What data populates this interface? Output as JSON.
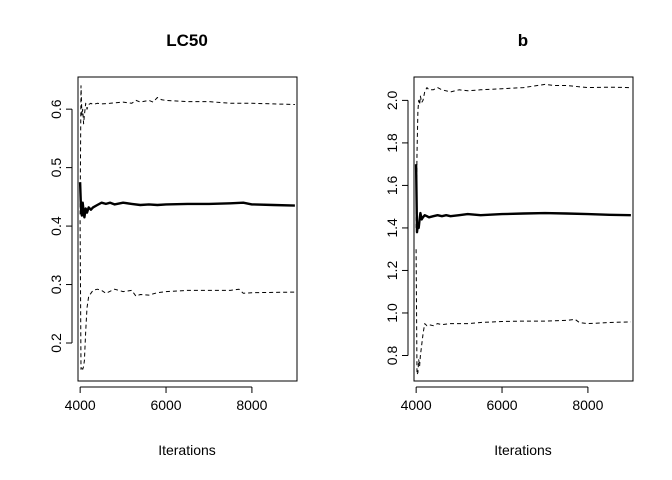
{
  "chart_data": [
    {
      "type": "line",
      "title": "LC50",
      "xlabel": "Iterations",
      "ylabel": "",
      "xlim": [
        3950,
        9050
      ],
      "ylim": [
        0.135,
        0.655
      ],
      "xticks": [
        4000,
        6000,
        8000
      ],
      "xtick_labels": [
        "4000",
        "6000",
        "8000"
      ],
      "yticks": [
        0.2,
        0.3,
        0.4,
        0.5,
        0.6
      ],
      "ytick_labels": [
        "0.2",
        "0.3",
        "0.4",
        "0.5",
        "0.6"
      ],
      "grid": false,
      "legend": "none",
      "series": [
        {
          "style": "solid-thick",
          "x": [
            4000,
            4020,
            4040,
            4060,
            4080,
            4100,
            4130,
            4160,
            4200,
            4250,
            4300,
            4400,
            4500,
            4600,
            4700,
            4800,
            5000,
            5200,
            5400,
            5600,
            5800,
            6000,
            6500,
            7000,
            7500,
            7800,
            8000,
            8500,
            9000
          ],
          "y": [
            0.475,
            0.43,
            0.418,
            0.44,
            0.425,
            0.415,
            0.43,
            0.423,
            0.432,
            0.428,
            0.432,
            0.436,
            0.44,
            0.438,
            0.44,
            0.437,
            0.44,
            0.438,
            0.436,
            0.437,
            0.436,
            0.437,
            0.438,
            0.438,
            0.439,
            0.44,
            0.437,
            0.436,
            0.435
          ]
        },
        {
          "style": "dashed",
          "x": [
            4000,
            4020,
            4040,
            4060,
            4080,
            4100,
            4130,
            4160,
            4200,
            4250,
            4300,
            4400,
            4500,
            4700,
            5000,
            5200,
            5300,
            5400,
            5600,
            5700,
            5800,
            5900,
            6000,
            6500,
            7000,
            7500,
            8000,
            8500,
            9000
          ],
          "y": [
            0.42,
            0.64,
            0.59,
            0.6,
            0.575,
            0.59,
            0.61,
            0.6,
            0.608,
            0.61,
            0.608,
            0.61,
            0.609,
            0.61,
            0.612,
            0.61,
            0.615,
            0.612,
            0.615,
            0.612,
            0.62,
            0.616,
            0.615,
            0.613,
            0.613,
            0.61,
            0.61,
            0.609,
            0.608
          ]
        },
        {
          "style": "dashed",
          "x": [
            4000,
            4020,
            4040,
            4060,
            4080,
            4100,
            4130,
            4160,
            4200,
            4250,
            4300,
            4400,
            4500,
            4600,
            4800,
            5000,
            5200,
            5300,
            5400,
            5600,
            5800,
            6000,
            6500,
            7000,
            7500,
            7700,
            7800,
            8000,
            9000
          ],
          "y": [
            0.41,
            0.155,
            0.16,
            0.155,
            0.16,
            0.17,
            0.22,
            0.26,
            0.28,
            0.285,
            0.29,
            0.292,
            0.29,
            0.285,
            0.292,
            0.288,
            0.29,
            0.28,
            0.283,
            0.282,
            0.286,
            0.288,
            0.29,
            0.29,
            0.29,
            0.292,
            0.285,
            0.286,
            0.287
          ]
        }
      ]
    },
    {
      "type": "line",
      "title": "b",
      "xlabel": "Iterations",
      "ylabel": "",
      "xlim": [
        3950,
        9050
      ],
      "ylim": [
        0.68,
        2.11
      ],
      "xticks": [
        4000,
        6000,
        8000
      ],
      "xtick_labels": [
        "4000",
        "6000",
        "8000"
      ],
      "yticks": [
        0.8,
        1.0,
        1.2,
        1.4,
        1.6,
        1.8,
        2.0
      ],
      "ytick_labels": [
        "0.8",
        "1.0",
        "1.2",
        "1.4",
        "1.6",
        "1.8",
        "2.0"
      ],
      "grid": false,
      "legend": "none",
      "series": [
        {
          "style": "solid-thick",
          "x": [
            4000,
            4020,
            4040,
            4060,
            4080,
            4100,
            4130,
            4160,
            4200,
            4250,
            4300,
            4400,
            4500,
            4600,
            4700,
            4800,
            5000,
            5200,
            5500,
            6000,
            6500,
            7000,
            7500,
            8000,
            8500,
            9000
          ],
          "y": [
            1.7,
            1.38,
            1.42,
            1.4,
            1.44,
            1.47,
            1.44,
            1.45,
            1.46,
            1.455,
            1.45,
            1.455,
            1.46,
            1.455,
            1.46,
            1.455,
            1.46,
            1.465,
            1.46,
            1.465,
            1.468,
            1.47,
            1.468,
            1.465,
            1.462,
            1.46
          ]
        },
        {
          "style": "dashed",
          "x": [
            4000,
            4020,
            4040,
            4060,
            4080,
            4100,
            4130,
            4160,
            4200,
            4250,
            4300,
            4400,
            4500,
            4600,
            4800,
            5000,
            5200,
            5500,
            6000,
            6500,
            7000,
            7200,
            7500,
            8000,
            8500,
            9000
          ],
          "y": [
            1.4,
            1.75,
            1.95,
            2.0,
            1.98,
            2.02,
            1.99,
            2.0,
            2.04,
            2.06,
            2.05,
            2.05,
            2.06,
            2.05,
            2.04,
            2.05,
            2.045,
            2.05,
            2.055,
            2.06,
            2.075,
            2.07,
            2.07,
            2.06,
            2.062,
            2.06
          ]
        },
        {
          "style": "dashed",
          "x": [
            4000,
            4020,
            4040,
            4060,
            4080,
            4100,
            4130,
            4160,
            4200,
            4250,
            4300,
            4400,
            4500,
            4600,
            4800,
            5000,
            5200,
            5500,
            6000,
            6500,
            7000,
            7500,
            7700,
            7800,
            8000,
            8500,
            9000
          ],
          "y": [
            1.3,
            0.71,
            0.72,
            0.78,
            0.75,
            0.8,
            0.85,
            0.9,
            0.95,
            0.94,
            0.945,
            0.94,
            0.95,
            0.945,
            0.95,
            0.95,
            0.95,
            0.955,
            0.96,
            0.962,
            0.962,
            0.965,
            0.97,
            0.955,
            0.95,
            0.955,
            0.958
          ]
        }
      ]
    }
  ]
}
